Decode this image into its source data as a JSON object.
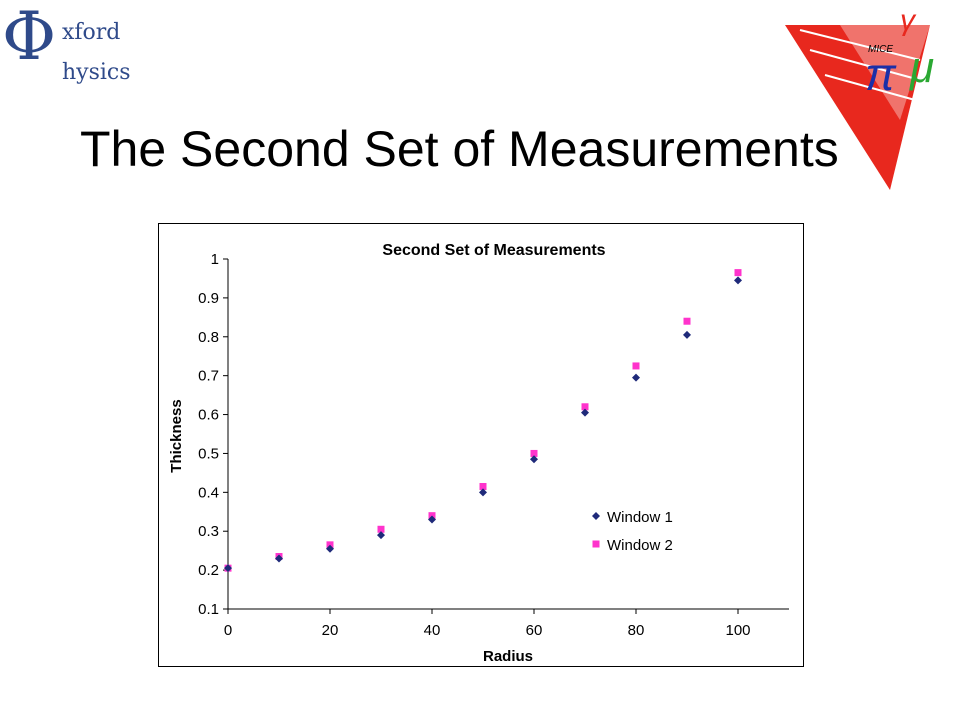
{
  "slide": {
    "title": "The Second Set of Measurements",
    "logo_left": {
      "symbol": "Φ",
      "line1": "xford",
      "line2": "hysics"
    },
    "logo_right": {
      "icon": "mice-muon-logo",
      "text": "MICE"
    }
  },
  "colors": {
    "window1": "#1f2a7a",
    "window2": "#ff33cc",
    "logo": "#2f4a8a",
    "logo_red": "#e8281e"
  },
  "chart_data": {
    "type": "scatter",
    "title": "Second Set of Measurements",
    "xlabel": "Radius",
    "ylabel": "Thickness",
    "xlim": [
      0,
      110
    ],
    "ylim": [
      0.1,
      1
    ],
    "xticks": [
      "0",
      "20",
      "40",
      "60",
      "80",
      "100"
    ],
    "yticks": [
      "0.1",
      "0.2",
      "0.3",
      "0.4",
      "0.5",
      "0.6",
      "0.7",
      "0.8",
      "0.9",
      "1"
    ],
    "grid": false,
    "legend_position": "right",
    "series": [
      {
        "name": "Window 1",
        "marker": "diamond",
        "x": [
          0,
          10,
          20,
          30,
          40,
          50,
          60,
          70,
          80,
          90,
          100
        ],
        "y": [
          0.205,
          0.23,
          0.255,
          0.29,
          0.33,
          0.4,
          0.485,
          0.605,
          0.695,
          0.805,
          0.945
        ]
      },
      {
        "name": "Window 2",
        "marker": "square",
        "x": [
          0,
          10,
          20,
          30,
          40,
          50,
          60,
          70,
          80,
          90,
          100
        ],
        "y": [
          0.205,
          0.235,
          0.265,
          0.305,
          0.34,
          0.415,
          0.5,
          0.62,
          0.725,
          0.84,
          0.965
        ]
      }
    ]
  }
}
